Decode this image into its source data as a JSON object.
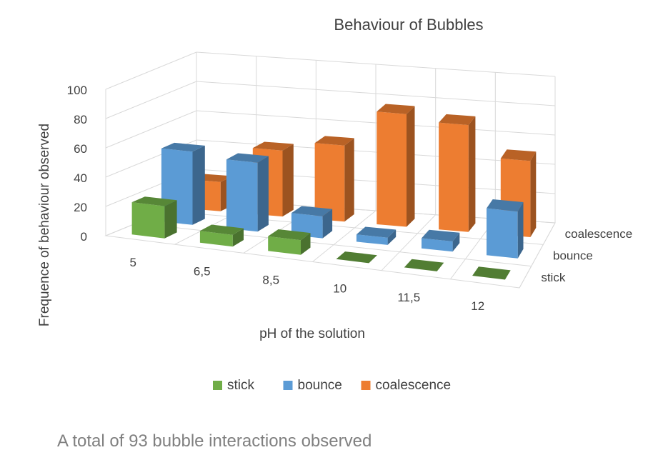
{
  "chart_data": {
    "type": "bar",
    "subtype": "3d-column",
    "title": "Behaviour of Bubbles",
    "xlabel": "pH of the solution",
    "ylabel": "Frequence  of behaviour observed",
    "categories": [
      "5",
      "6,5",
      "8,5",
      "10",
      "11,5",
      "12"
    ],
    "series": [
      {
        "name": "stick",
        "values": [
          22,
          8,
          10,
          0,
          0,
          0
        ]
      },
      {
        "name": "bounce",
        "values": [
          50,
          47,
          15,
          5,
          7,
          32
        ]
      },
      {
        "name": "coalescence",
        "values": [
          20,
          45,
          52,
          77,
          73,
          52
        ]
      }
    ],
    "yticks": [
      0,
      20,
      40,
      60,
      80,
      100
    ],
    "ylim": [
      0,
      100
    ],
    "grid": true,
    "legend_position": "bottom",
    "colors": {
      "stick": "#70ad47",
      "bounce": "#5b9bd5",
      "coalescence": "#ed7d31",
      "grid": "#d9d9d9",
      "text": "#404040"
    }
  },
  "footnote": "A total of 93 bubble interactions observed"
}
